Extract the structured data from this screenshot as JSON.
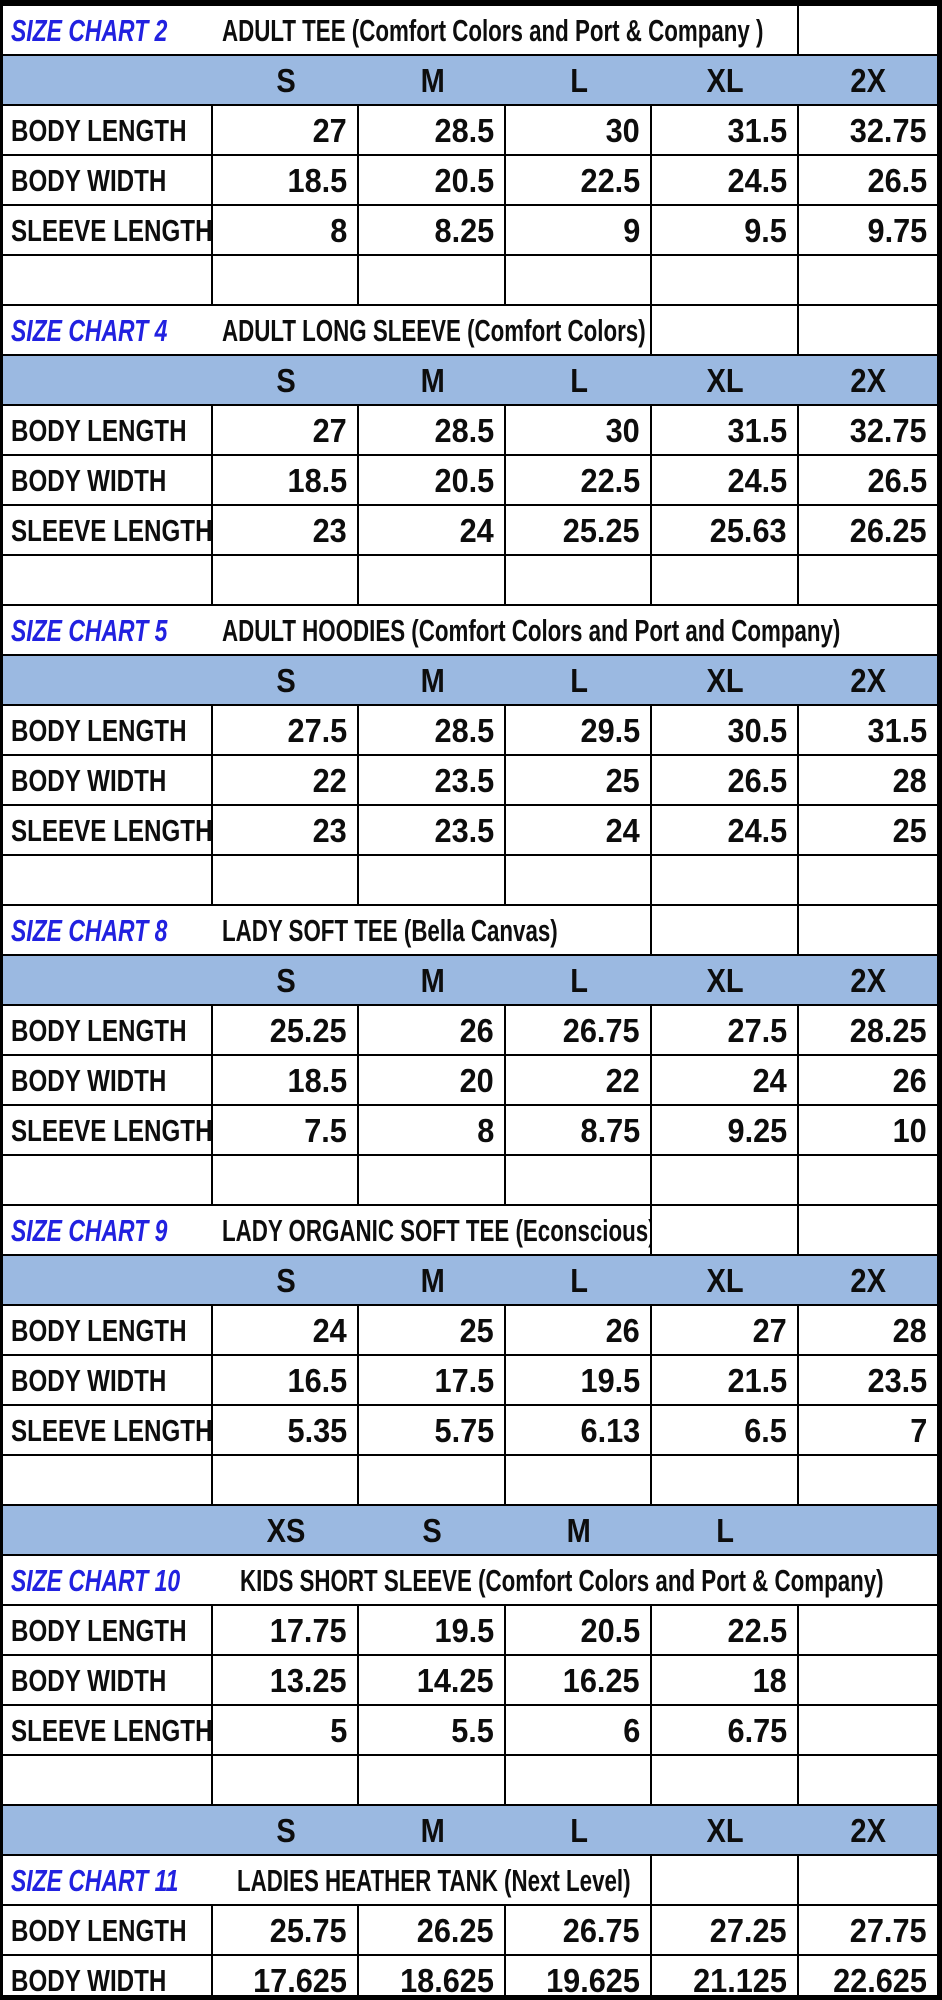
{
  "document": {
    "kind": "apparel size chart sheet",
    "measurement_unit_note": "",
    "colors": {
      "header_band_blue": "#9bb9e1",
      "chart_label_blue": "#2121e0",
      "grid_border": "#000000",
      "background": "#ffffff"
    }
  },
  "sections": [
    {
      "chart_label": "SIZE CHART 2",
      "title": "ADULT TEE (Comfort Colors and Port & Company )",
      "sizes": [
        "S",
        "M",
        "L",
        "XL",
        "2X"
      ],
      "rows": [
        {
          "label": "BODY LENGTH",
          "values": [
            "27",
            "28.5",
            "30",
            "31.5",
            "32.75"
          ]
        },
        {
          "label": "BODY WIDTH",
          "values": [
            "18.5",
            "20.5",
            "22.5",
            "24.5",
            "26.5"
          ]
        },
        {
          "label": "SLEEVE LENGTH",
          "values": [
            "8",
            "8.25",
            "9",
            "9.5",
            "9.75"
          ]
        }
      ]
    },
    {
      "chart_label": "SIZE CHART 4",
      "title": "ADULT LONG SLEEVE (Comfort Colors)",
      "sizes": [
        "S",
        "M",
        "L",
        "XL",
        "2X"
      ],
      "rows": [
        {
          "label": "BODY LENGTH",
          "values": [
            "27",
            "28.5",
            "30",
            "31.5",
            "32.75"
          ]
        },
        {
          "label": "BODY WIDTH",
          "values": [
            "18.5",
            "20.5",
            "22.5",
            "24.5",
            "26.5"
          ]
        },
        {
          "label": "SLEEVE LENGTH",
          "values": [
            "23",
            "24",
            "25.25",
            "25.63",
            "26.25"
          ]
        }
      ]
    },
    {
      "chart_label": "SIZE CHART 5",
      "title": "ADULT HOODIES (Comfort Colors and Port and Company)",
      "sizes": [
        "S",
        "M",
        "L",
        "XL",
        "2X"
      ],
      "rows": [
        {
          "label": "BODY LENGTH",
          "values": [
            "27.5",
            "28.5",
            "29.5",
            "30.5",
            "31.5"
          ]
        },
        {
          "label": "BODY WIDTH",
          "values": [
            "22",
            "23.5",
            "25",
            "26.5",
            "28"
          ]
        },
        {
          "label": "SLEEVE LENGTH",
          "values": [
            "23",
            "23.5",
            "24",
            "24.5",
            "25"
          ]
        }
      ]
    },
    {
      "chart_label": "SIZE CHART 8",
      "title": "LADY SOFT TEE (Bella Canvas)",
      "sizes": [
        "S",
        "M",
        "L",
        "XL",
        "2X"
      ],
      "rows": [
        {
          "label": "BODY LENGTH",
          "values": [
            "25.25",
            "26",
            "26.75",
            "27.5",
            "28.25"
          ]
        },
        {
          "label": "BODY WIDTH",
          "values": [
            "18.5",
            "20",
            "22",
            "24",
            "26"
          ]
        },
        {
          "label": "SLEEVE LENGTH",
          "values": [
            "7.5",
            "8",
            "8.75",
            "9.25",
            "10"
          ]
        }
      ]
    },
    {
      "chart_label": "SIZE CHART 9",
      "title": "LADY ORGANIC SOFT TEE (Econscious)",
      "sizes": [
        "S",
        "M",
        "L",
        "XL",
        "2X"
      ],
      "rows": [
        {
          "label": "BODY LENGTH",
          "values": [
            "24",
            "25",
            "26",
            "27",
            "28"
          ]
        },
        {
          "label": "BODY WIDTH",
          "values": [
            "16.5",
            "17.5",
            "19.5",
            "21.5",
            "23.5"
          ]
        },
        {
          "label": "SLEEVE LENGTH",
          "values": [
            "5.35",
            "5.75",
            "6.13",
            "6.5",
            "7"
          ]
        }
      ]
    },
    {
      "chart_label": "SIZE CHART 10",
      "title": "KIDS SHORT SLEEVE (Comfort Colors and Port & Company)",
      "sizes": [
        "XS",
        "S",
        "M",
        "L",
        ""
      ],
      "rows": [
        {
          "label": "BODY LENGTH",
          "values": [
            "17.75",
            "19.5",
            "20.5",
            "22.5",
            ""
          ]
        },
        {
          "label": "BODY WIDTH",
          "values": [
            "13.25",
            "14.25",
            "16.25",
            "18",
            ""
          ]
        },
        {
          "label": "SLEEVE LENGTH",
          "values": [
            "5",
            "5.5",
            "6",
            "6.75",
            ""
          ]
        }
      ]
    },
    {
      "chart_label": "SIZE CHART 11",
      "title": "LADIES HEATHER TANK (Next Level)",
      "sizes": [
        "S",
        "M",
        "L",
        "XL",
        "2X"
      ],
      "rows": [
        {
          "label": "BODY LENGTH",
          "values": [
            "25.75",
            "26.25",
            "26.75",
            "27.25",
            "27.75"
          ]
        },
        {
          "label": "BODY WIDTH",
          "values": [
            "17.625",
            "18.625",
            "19.625",
            "21.125",
            "22.625"
          ]
        }
      ]
    }
  ]
}
